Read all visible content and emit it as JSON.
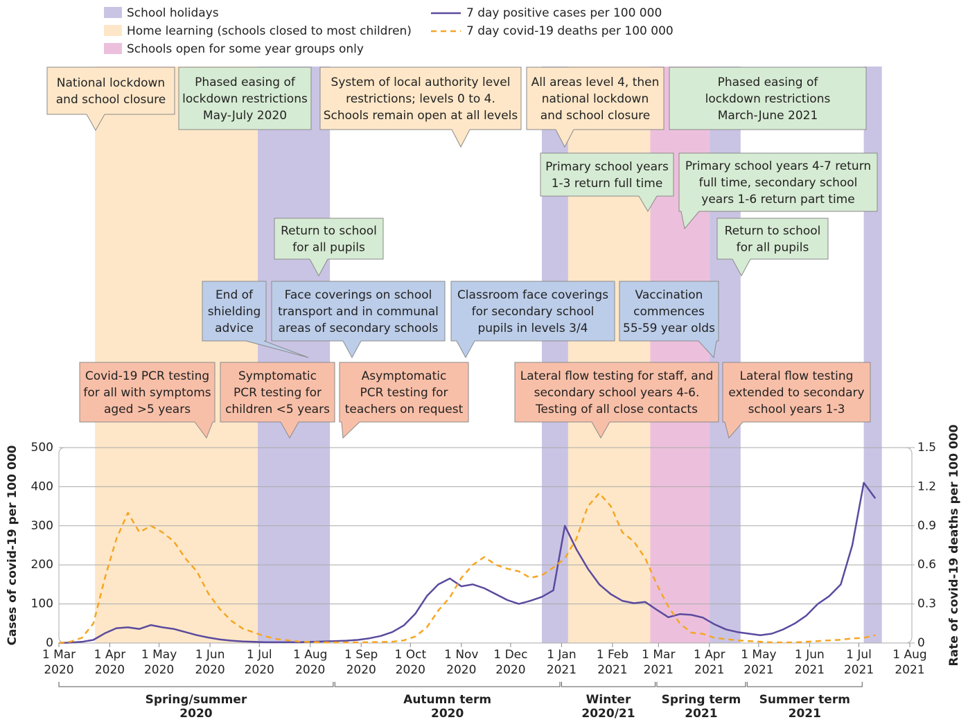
{
  "chart_data": {
    "type": "line",
    "x": [
      "2020-03-01",
      "2020-03-08",
      "2020-03-15",
      "2020-03-22",
      "2020-03-29",
      "2020-04-05",
      "2020-04-12",
      "2020-04-19",
      "2020-04-26",
      "2020-05-03",
      "2020-05-10",
      "2020-05-17",
      "2020-05-24",
      "2020-05-31",
      "2020-06-07",
      "2020-06-14",
      "2020-06-21",
      "2020-06-28",
      "2020-07-05",
      "2020-07-12",
      "2020-07-19",
      "2020-07-26",
      "2020-08-02",
      "2020-08-09",
      "2020-08-16",
      "2020-08-23",
      "2020-08-30",
      "2020-09-06",
      "2020-09-13",
      "2020-09-20",
      "2020-09-27",
      "2020-10-04",
      "2020-10-11",
      "2020-10-18",
      "2020-10-25",
      "2020-11-01",
      "2020-11-08",
      "2020-11-15",
      "2020-11-22",
      "2020-11-29",
      "2020-12-06",
      "2020-12-13",
      "2020-12-20",
      "2020-12-27",
      "2021-01-03",
      "2021-01-10",
      "2021-01-17",
      "2021-01-24",
      "2021-01-31",
      "2021-02-07",
      "2021-02-14",
      "2021-02-21",
      "2021-02-28",
      "2021-03-07",
      "2021-03-14",
      "2021-03-21",
      "2021-03-28",
      "2021-04-04",
      "2021-04-11",
      "2021-04-18",
      "2021-04-25",
      "2021-05-02",
      "2021-05-09",
      "2021-05-16",
      "2021-05-23",
      "2021-05-30",
      "2021-06-06",
      "2021-06-13",
      "2021-06-20",
      "2021-06-27",
      "2021-07-04",
      "2021-07-11"
    ],
    "series": [
      {
        "name": "7 day positive cases per 100 000",
        "color": "#5b4a9e",
        "axis": "y",
        "values": [
          0,
          1,
          3,
          8,
          25,
          38,
          40,
          36,
          46,
          40,
          36,
          28,
          20,
          14,
          9,
          6,
          4,
          3,
          2,
          2,
          2,
          2,
          3,
          4,
          5,
          6,
          8,
          12,
          18,
          28,
          45,
          75,
          120,
          150,
          165,
          145,
          150,
          140,
          125,
          110,
          100,
          108,
          118,
          135,
          300,
          240,
          190,
          150,
          125,
          108,
          102,
          105,
          85,
          66,
          74,
          72,
          65,
          48,
          35,
          28,
          24,
          20,
          24,
          35,
          50,
          70,
          100,
          120,
          150,
          250,
          410,
          370
        ]
      },
      {
        "name": "7 day covid-19 deaths per 100 000",
        "color": "#f5a623",
        "axis": "y2",
        "dashed": true,
        "values": [
          0,
          0.01,
          0.04,
          0.15,
          0.5,
          0.8,
          1.0,
          0.85,
          0.9,
          0.85,
          0.78,
          0.65,
          0.55,
          0.38,
          0.26,
          0.17,
          0.11,
          0.08,
          0.05,
          0.03,
          0.02,
          0.01,
          0.008,
          0.005,
          0.005,
          0.005,
          0.005,
          0.006,
          0.008,
          0.01,
          0.02,
          0.05,
          0.12,
          0.25,
          0.35,
          0.5,
          0.6,
          0.66,
          0.6,
          0.57,
          0.55,
          0.5,
          0.52,
          0.58,
          0.65,
          0.8,
          1.05,
          1.15,
          1.05,
          0.85,
          0.78,
          0.65,
          0.45,
          0.28,
          0.15,
          0.08,
          0.07,
          0.04,
          0.03,
          0.02,
          0.015,
          0.01,
          0.005,
          0.005,
          0.005,
          0.01,
          0.015,
          0.02,
          0.025,
          0.035,
          0.04,
          0.06
        ]
      }
    ],
    "xlim": [
      "2020-03-01",
      "2021-08-01"
    ],
    "xticks": [
      {
        "value": "2020-03-01",
        "label": "1 Mar 2020"
      },
      {
        "value": "2020-04-01",
        "label": "1 Apr 2020"
      },
      {
        "value": "2020-05-01",
        "label": "1 May 2020"
      },
      {
        "value": "2020-06-01",
        "label": "1 Jun 2020"
      },
      {
        "value": "2020-07-01",
        "label": "1 Jul 2020"
      },
      {
        "value": "2020-08-01",
        "label": "1 Aug 2020"
      },
      {
        "value": "2020-09-01",
        "label": "1 Sep 2020"
      },
      {
        "value": "2020-10-01",
        "label": "1 Oct 2020"
      },
      {
        "value": "2020-11-01",
        "label": "1 Nov 2020"
      },
      {
        "value": "2020-12-01",
        "label": "1 Dec 2020"
      },
      {
        "value": "2021-01-01",
        "label": "1 Jan 2021"
      },
      {
        "value": "2021-02-01",
        "label": "1 Feb 2021"
      },
      {
        "value": "2021-03-01",
        "label": "1 Mar 2021"
      },
      {
        "value": "2021-04-01",
        "label": "1 Apr 2021"
      },
      {
        "value": "2021-05-01",
        "label": "1 May 2021"
      },
      {
        "value": "2021-06-01",
        "label": "1 Jun 2021"
      },
      {
        "value": "2021-07-01",
        "label": "1 Jul 2021"
      },
      {
        "value": "2021-08-01",
        "label": "1 Aug 2021"
      }
    ],
    "ylim": [
      0,
      500
    ],
    "yticks": [
      0,
      100,
      200,
      300,
      400,
      500
    ],
    "y2lim": [
      0,
      1.5
    ],
    "y2ticks": [
      0,
      0.3,
      0.6,
      0.9,
      1.2,
      1.5
    ],
    "ylabel": "Cases of covid-19 per 100 000",
    "y2label": "Rate of covid-19 deaths per 100 000",
    "grid": true,
    "periods": [
      {
        "name": "School holidays",
        "color": "#c9c4e4",
        "spans": [
          [
            "2020-06-30",
            "2020-08-13"
          ],
          [
            "2020-12-20",
            "2021-01-05"
          ],
          [
            "2021-04-01",
            "2021-04-20"
          ],
          [
            "2021-07-04",
            "2021-07-15"
          ]
        ]
      },
      {
        "name": "Home learning (schools closed to most children)",
        "color": "#fde7c8",
        "spans": [
          [
            "2020-03-23",
            "2020-06-30"
          ],
          [
            "2021-01-05",
            "2021-02-24"
          ]
        ]
      },
      {
        "name": "Schools open for some year groups only",
        "color": "#ecc0dc",
        "spans": [
          [
            "2021-02-24",
            "2021-04-01"
          ]
        ]
      }
    ],
    "annotations": [
      {
        "lines": [
          "National lockdown",
          "and school closure"
        ],
        "color": "#fde7c8"
      },
      {
        "lines": [
          "Phased easing of",
          "lockdown restrictions",
          "May-July 2020"
        ],
        "color": "#d6ebd3"
      },
      {
        "lines": [
          "System of local authority level",
          "restrictions; levels 0 to 4.",
          "Schools remain open at all levels"
        ],
        "color": "#fde7c8"
      },
      {
        "lines": [
          "All areas level 4, then",
          "national lockdown",
          "and school closure"
        ],
        "color": "#fde7c8"
      },
      {
        "lines": [
          "Phased easing of",
          "lockdown restrictions",
          "March-June 2021"
        ],
        "color": "#d6ebd3"
      },
      {
        "lines": [
          "Primary school years",
          "1-3 return full time"
        ],
        "color": "#d6ebd3"
      },
      {
        "lines": [
          "Primary school years 4-7 return",
          "full time, secondary school",
          "years 1-6 return part time"
        ],
        "color": "#d6ebd3"
      },
      {
        "lines": [
          "Return to school",
          "for all pupils"
        ],
        "color": "#d6ebd3"
      },
      {
        "lines": [
          "Return to school",
          "for all pupils"
        ],
        "color": "#d6ebd3"
      },
      {
        "lines": [
          "End of",
          "shielding",
          "advice"
        ],
        "color": "#bccde9"
      },
      {
        "lines": [
          "Face coverings on school",
          "transport and in communal",
          "areas of secondary schools"
        ],
        "color": "#bccde9"
      },
      {
        "lines": [
          "Classroom face coverings",
          "for secondary school",
          "pupils in levels 3/4"
        ],
        "color": "#bccde9"
      },
      {
        "lines": [
          "Vaccination",
          "commences",
          "55-59 year olds"
        ],
        "color": "#bccde9"
      },
      {
        "lines": [
          "Covid-19 PCR testing",
          "for all with symptoms",
          "aged >5 years"
        ],
        "color": "#f8bfa8"
      },
      {
        "lines": [
          "Symptomatic",
          "PCR testing for",
          "children <5 years"
        ],
        "color": "#f8bfa8"
      },
      {
        "lines": [
          "Asymptomatic",
          "PCR testing for",
          "teachers on request"
        ],
        "color": "#f8bfa8"
      },
      {
        "lines": [
          "Lateral flow testing for staff, and",
          "secondary school years 4-6.",
          "Testing of all close contacts"
        ],
        "color": "#f8bfa8"
      },
      {
        "lines": [
          "Lateral flow testing",
          "extended to secondary",
          "school years 1-3"
        ],
        "color": "#f8bfa8"
      }
    ],
    "terms": [
      {
        "lines": [
          "Spring/summer",
          "2020"
        ],
        "start": "2020-03-01",
        "end": "2020-08-15"
      },
      {
        "lines": [
          "Autumn term",
          "2020"
        ],
        "start": "2020-08-16",
        "end": "2020-12-31"
      },
      {
        "lines": [
          "Winter",
          "2020/21"
        ],
        "start": "2021-01-01",
        "end": "2021-02-27"
      },
      {
        "lines": [
          "Spring term",
          "2021"
        ],
        "start": "2021-02-28",
        "end": "2021-04-23"
      },
      {
        "lines": [
          "Summer term",
          "2021"
        ],
        "start": "2021-04-24",
        "end": "2021-07-03"
      }
    ]
  }
}
